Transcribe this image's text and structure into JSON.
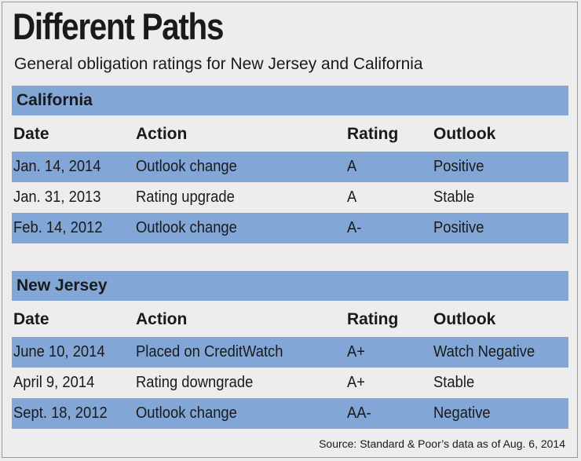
{
  "title": "Different Paths",
  "subtitle": "General obligation ratings for New Jersey and California",
  "columns": [
    "Date",
    "Action",
    "Rating",
    "Outlook"
  ],
  "colors": {
    "band": "#82a6d6",
    "background": "#ededee"
  },
  "chart_data": {
    "type": "table",
    "title": "Different Paths",
    "subtitle": "General obligation ratings for New Jersey and California",
    "columns": [
      "Date",
      "Action",
      "Rating",
      "Outlook"
    ],
    "sections": [
      {
        "name": "California",
        "rows": [
          [
            "Jan. 14, 2014",
            "Outlook change",
            "A",
            "Positive"
          ],
          [
            "Jan. 31, 2013",
            "Rating upgrade",
            "A",
            "Stable"
          ],
          [
            "Feb. 14, 2012",
            "Outlook change",
            "A-",
            "Positive"
          ]
        ]
      },
      {
        "name": "New Jersey",
        "rows": [
          [
            "June 10, 2014",
            "Placed on CreditWatch",
            "A+",
            "Watch Negative"
          ],
          [
            "April 9, 2014",
            "Rating downgrade",
            "A+",
            "Stable"
          ],
          [
            "Sept. 18, 2012",
            "Outlook change",
            "AA-",
            "Negative"
          ]
        ]
      }
    ],
    "source": "Source: Standard & Poor’s data as of Aug. 6, 2014"
  }
}
